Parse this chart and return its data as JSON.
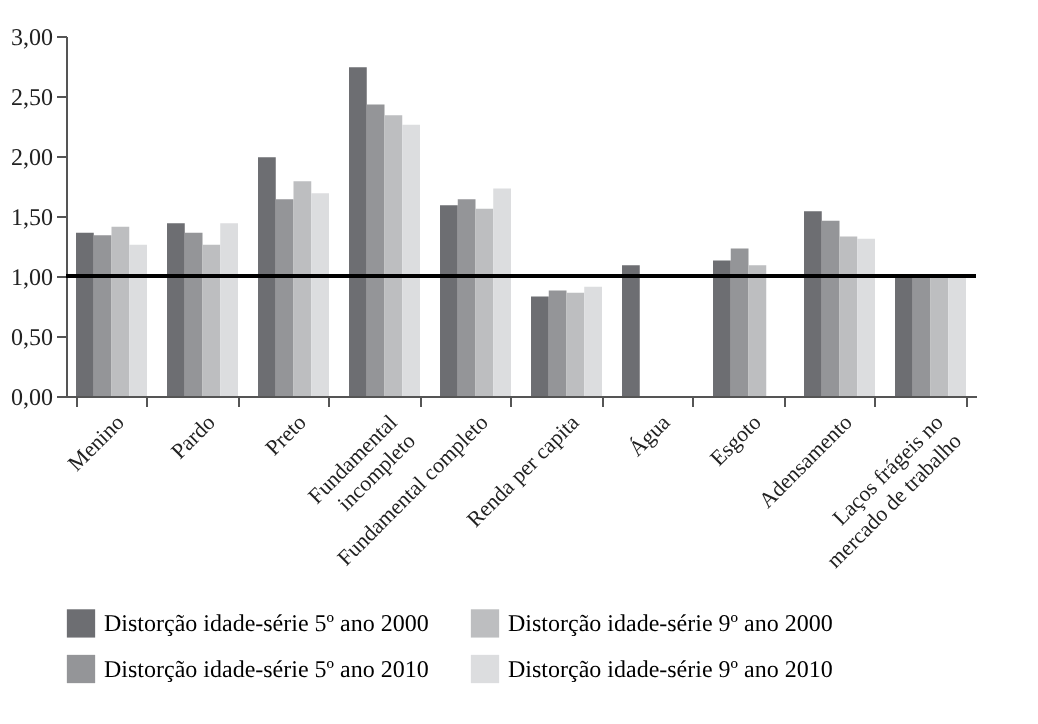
{
  "chart_data": {
    "type": "bar",
    "categories": [
      "Menino",
      "Pardo",
      "Preto",
      "Fundamental incompleto",
      "Fundamental completo",
      "Renda per capita",
      "Água",
      "Esgoto",
      "Adensamento",
      "Laços frágeis no mercado de trabalho"
    ],
    "series": [
      {
        "name": "Distorção idade-série 5º ano 2000",
        "color": "#6d6e72",
        "values": [
          1.36,
          1.44,
          1.99,
          2.74,
          1.59,
          0.83,
          1.09,
          1.13,
          1.54,
          1.0
        ]
      },
      {
        "name": "Distorção idade-série 5º ano 2010",
        "color": "#949598",
        "values": [
          1.34,
          1.36,
          1.64,
          2.43,
          1.64,
          0.88,
          null,
          1.23,
          1.46,
          1.0
        ]
      },
      {
        "name": "Distorção idade-série 9º ano 2000",
        "color": "#bdbec0",
        "values": [
          1.41,
          1.26,
          1.79,
          2.34,
          1.56,
          0.86,
          null,
          1.09,
          1.33,
          1.0
        ]
      },
      {
        "name": "Distorção idade-série 9º ano 2010",
        "color": "#dcdddf",
        "values": [
          1.26,
          1.44,
          1.69,
          2.26,
          1.73,
          0.91,
          null,
          null,
          1.31,
          1.0
        ]
      }
    ],
    "ylim": [
      0,
      3
    ],
    "yticks": [
      {
        "value": 0,
        "label": "0,00"
      },
      {
        "value": 0.5,
        "label": "0,50"
      },
      {
        "value": 1,
        "label": "1,00"
      },
      {
        "value": 1.5,
        "label": "1,50"
      },
      {
        "value": 2,
        "label": "2,00"
      },
      {
        "value": 2.5,
        "label": "2,50"
      },
      {
        "value": 3,
        "label": "3,00"
      }
    ],
    "grid": false,
    "legend": "bottom",
    "ref_lines": [
      {
        "axis": "y",
        "value": 1,
        "color": "#000000"
      }
    ]
  }
}
